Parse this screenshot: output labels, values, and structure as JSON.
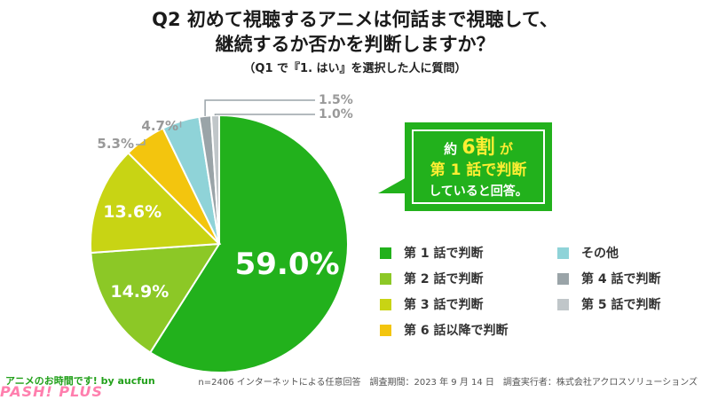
{
  "title_line1": "Q2 初めて視聴するアニメは何話まで視聴して、",
  "title_line2": "継続するか否かを判断しますか？",
  "subtitle": "（Q1 で『1. はい』を選択した人に質問）",
  "callout": {
    "prefix": "約",
    "highlight": "6割",
    "suffix": "が",
    "line2": "第 1 話で判断",
    "line3": "していると回答。",
    "color": "#22b11c"
  },
  "footer": {
    "left": "アニメのお時間です! by aucfun",
    "logo": "PASH! PLUS",
    "right": "n=2406 インターネットによる任意回答　調査期間：2023 年 9 月 14 日　調査実行者：株式会社アクロスソリューションズ"
  },
  "chart_data": {
    "type": "pie",
    "start": "top",
    "direction": "clockwise",
    "series": [
      {
        "label": "第 1 話で判断",
        "value": 59.0,
        "value_label": "59.0%",
        "color": "#22b11c"
      },
      {
        "label": "第 2 話で判断",
        "value": 14.9,
        "value_label": "14.9%",
        "color": "#8cc826"
      },
      {
        "label": "第 3 話で判断",
        "value": 13.6,
        "value_label": "13.6%",
        "color": "#c8d414"
      },
      {
        "label": "第 6 話以降で判断",
        "value": 5.3,
        "value_label": "5.3%",
        "color": "#f3c50e"
      },
      {
        "label": "その他",
        "value": 4.7,
        "value_label": "4.7%",
        "color": "#8fd3d8"
      },
      {
        "label": "第 4 話で判断",
        "value": 1.5,
        "value_label": "1.5%",
        "color": "#9aa4a8"
      },
      {
        "label": "第 5 話で判断",
        "value": 1.0,
        "value_label": "1.0%",
        "color": "#c0c6c9"
      }
    ],
    "legend_order": [
      "第 1 話で判断",
      "その他",
      "第 2 話で判断",
      "第 4 話で判断",
      "第 3 話で判断",
      "第 5 話で判断",
      "第 6 話以降で判断"
    ]
  }
}
